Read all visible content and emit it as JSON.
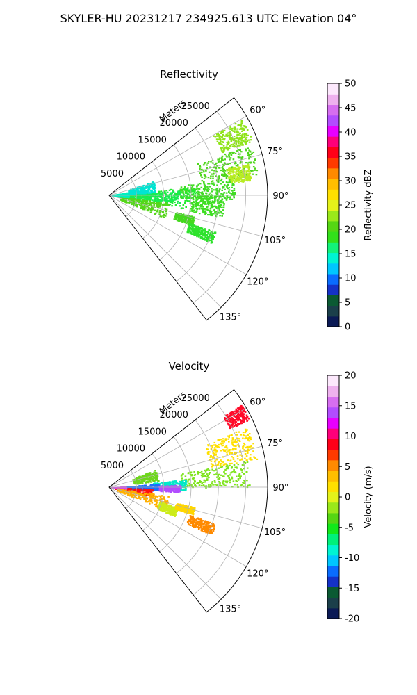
{
  "figure": {
    "suptitle": "SKYLER-HU  20231217  234925.613 UTC Elevation 04°"
  },
  "chart_data": [
    {
      "type": "heatmap",
      "subtype": "polar-sector",
      "title": "Reflectivity",
      "range_label": "Meters",
      "theta_range_deg": [
        52,
        142
      ],
      "theta_ticks": [
        "60°",
        "75°",
        "90°",
        "105°",
        "120°",
        "135°"
      ],
      "theta_tick_values": [
        60,
        75,
        90,
        105,
        120,
        135
      ],
      "r_max": 29000,
      "r_ticks": [
        "5000",
        "10000",
        "15000",
        "20000",
        "25000"
      ],
      "r_tick_values": [
        5000,
        10000,
        15000,
        20000,
        25000
      ],
      "grid": true,
      "colorbar": {
        "label": "Reflectivity dBZ",
        "min": 0,
        "max": 50,
        "ticks": [
          "0",
          "5",
          "10",
          "15",
          "20",
          "25",
          "30",
          "35",
          "40",
          "45",
          "50"
        ],
        "tick_values": [
          0,
          5,
          10,
          15,
          20,
          25,
          30,
          35,
          40,
          45,
          50
        ],
        "stops": [
          "#0b1a55",
          "#1b3f4a",
          "#0b5a33",
          "#1532c8",
          "#0a6cff",
          "#00c6ff",
          "#00f4d2",
          "#12f27a",
          "#32e01a",
          "#55d613",
          "#9ae81a",
          "#e4f21a",
          "#ffe000",
          "#ffbe00",
          "#ff8a00",
          "#ff3a00",
          "#ff0018",
          "#ff007a",
          "#e800ff",
          "#b24dff",
          "#d66ef0",
          "#eeb1ee",
          "#fce8fc"
        ]
      },
      "cells": [
        {
          "theta": [
            60,
            69
          ],
          "r": [
            22000,
            28000
          ],
          "value": 20,
          "color": "#8fe41a"
        },
        {
          "theta": [
            70,
            82
          ],
          "r": [
            17000,
            27500
          ],
          "value": 18,
          "color": "#4fd61c"
        },
        {
          "theta": [
            77,
            84
          ],
          "r": [
            22000,
            26000
          ],
          "value": 24,
          "color": "#b8ec22"
        },
        {
          "theta": [
            82,
            92
          ],
          "r": [
            12000,
            23000
          ],
          "value": 17,
          "color": "#40dc24"
        },
        {
          "theta": [
            84,
            100
          ],
          "r": [
            1500,
            16000
          ],
          "value": 16,
          "color": "#22ea30"
        },
        {
          "theta": [
            86,
            96
          ],
          "r": [
            3500,
            13000
          ],
          "value": 14,
          "color": "#18ec50"
        },
        {
          "theta": [
            97,
            112
          ],
          "r": [
            2000,
            11000
          ],
          "value": 18,
          "color": "#55d61a"
        },
        {
          "theta": [
            72,
            86
          ],
          "r": [
            3500,
            8500
          ],
          "value": 12,
          "color": "#00e4d2"
        },
        {
          "theta": [
            80,
            95
          ],
          "r": [
            500,
            3500
          ],
          "value": 13,
          "color": "#00f0c0"
        },
        {
          "theta": [
            104,
            110
          ],
          "r": [
            12500,
            16000
          ],
          "value": 17,
          "color": "#44d81e"
        },
        {
          "theta": [
            109,
            115
          ],
          "r": [
            15500,
            20500
          ],
          "value": 16,
          "color": "#2ee22c"
        },
        {
          "theta": [
            90,
            101
          ],
          "r": [
            15000,
            21000
          ],
          "value": 17,
          "color": "#3ede22"
        }
      ]
    },
    {
      "type": "heatmap",
      "subtype": "polar-sector",
      "title": "Velocity",
      "range_label": "Meters",
      "theta_range_deg": [
        52,
        142
      ],
      "theta_ticks": [
        "60°",
        "75°",
        "90°",
        "105°",
        "120°",
        "135°"
      ],
      "theta_tick_values": [
        60,
        75,
        90,
        105,
        120,
        135
      ],
      "r_max": 29000,
      "r_ticks": [
        "5000",
        "10000",
        "15000",
        "20000",
        "25000"
      ],
      "r_tick_values": [
        5000,
        10000,
        15000,
        20000,
        25000
      ],
      "grid": true,
      "colorbar": {
        "label": "Velocity (m/s)",
        "min": -20,
        "max": 20,
        "ticks": [
          "-20",
          "-15",
          "-10",
          "-5",
          "0",
          "5",
          "10",
          "15",
          "20"
        ],
        "tick_values": [
          -20,
          -15,
          -10,
          -5,
          0,
          5,
          10,
          15,
          20
        ],
        "stops": [
          "#0b1a55",
          "#1b3f4a",
          "#0b5a33",
          "#1532c8",
          "#0a6cff",
          "#00c6ff",
          "#00f4d2",
          "#00f07a",
          "#12e81a",
          "#55d613",
          "#9ae81a",
          "#e4f21a",
          "#ffe000",
          "#ffbe00",
          "#ff8a00",
          "#ff3a00",
          "#ff0018",
          "#ff007a",
          "#e800ff",
          "#b24dff",
          "#d66ef0",
          "#eeb1ee",
          "#fce8fc"
        ]
      },
      "cells": [
        {
          "theta": [
            58,
            64
          ],
          "r": [
            24500,
            28500
          ],
          "value": 10,
          "color": "#ff0a28"
        },
        {
          "theta": [
            66,
            79
          ],
          "r": [
            19000,
            27500
          ],
          "value": 1,
          "color": "#ffe000"
        },
        {
          "theta": [
            79,
            90
          ],
          "r": [
            13000,
            26000
          ],
          "value": -6,
          "color": "#7ee41c"
        },
        {
          "theta": [
            84,
            92
          ],
          "r": [
            8000,
            14000
          ],
          "value": -11,
          "color": "#00e8c8"
        },
        {
          "theta": [
            86,
            94
          ],
          "r": [
            3000,
            9000
          ],
          "value": -14,
          "color": "#1a6cff"
        },
        {
          "theta": [
            92,
            102
          ],
          "r": [
            1000,
            8000
          ],
          "value": 10,
          "color": "#ff1010"
        },
        {
          "theta": [
            88,
            94
          ],
          "r": [
            9000,
            13000
          ],
          "value": 15,
          "color": "#b24dff"
        },
        {
          "theta": [
            87,
            93
          ],
          "r": [
            400,
            3000
          ],
          "value": 16,
          "color": "#d44de8"
        },
        {
          "theta": [
            98,
            112
          ],
          "r": [
            1500,
            11000
          ],
          "value": 3,
          "color": "#ffb000"
        },
        {
          "theta": [
            106,
            114
          ],
          "r": [
            9500,
            13000
          ],
          "value": -2,
          "color": "#ccec1a"
        },
        {
          "theta": [
            103,
            108
          ],
          "r": [
            12500,
            16000
          ],
          "value": 2,
          "color": "#ffd600"
        },
        {
          "theta": [
            109,
            115
          ],
          "r": [
            15500,
            20500
          ],
          "value": 5,
          "color": "#ff8a00"
        },
        {
          "theta": [
            69,
            82
          ],
          "r": [
            4500,
            9000
          ],
          "value": -6,
          "color": "#6ed61c"
        }
      ]
    }
  ]
}
